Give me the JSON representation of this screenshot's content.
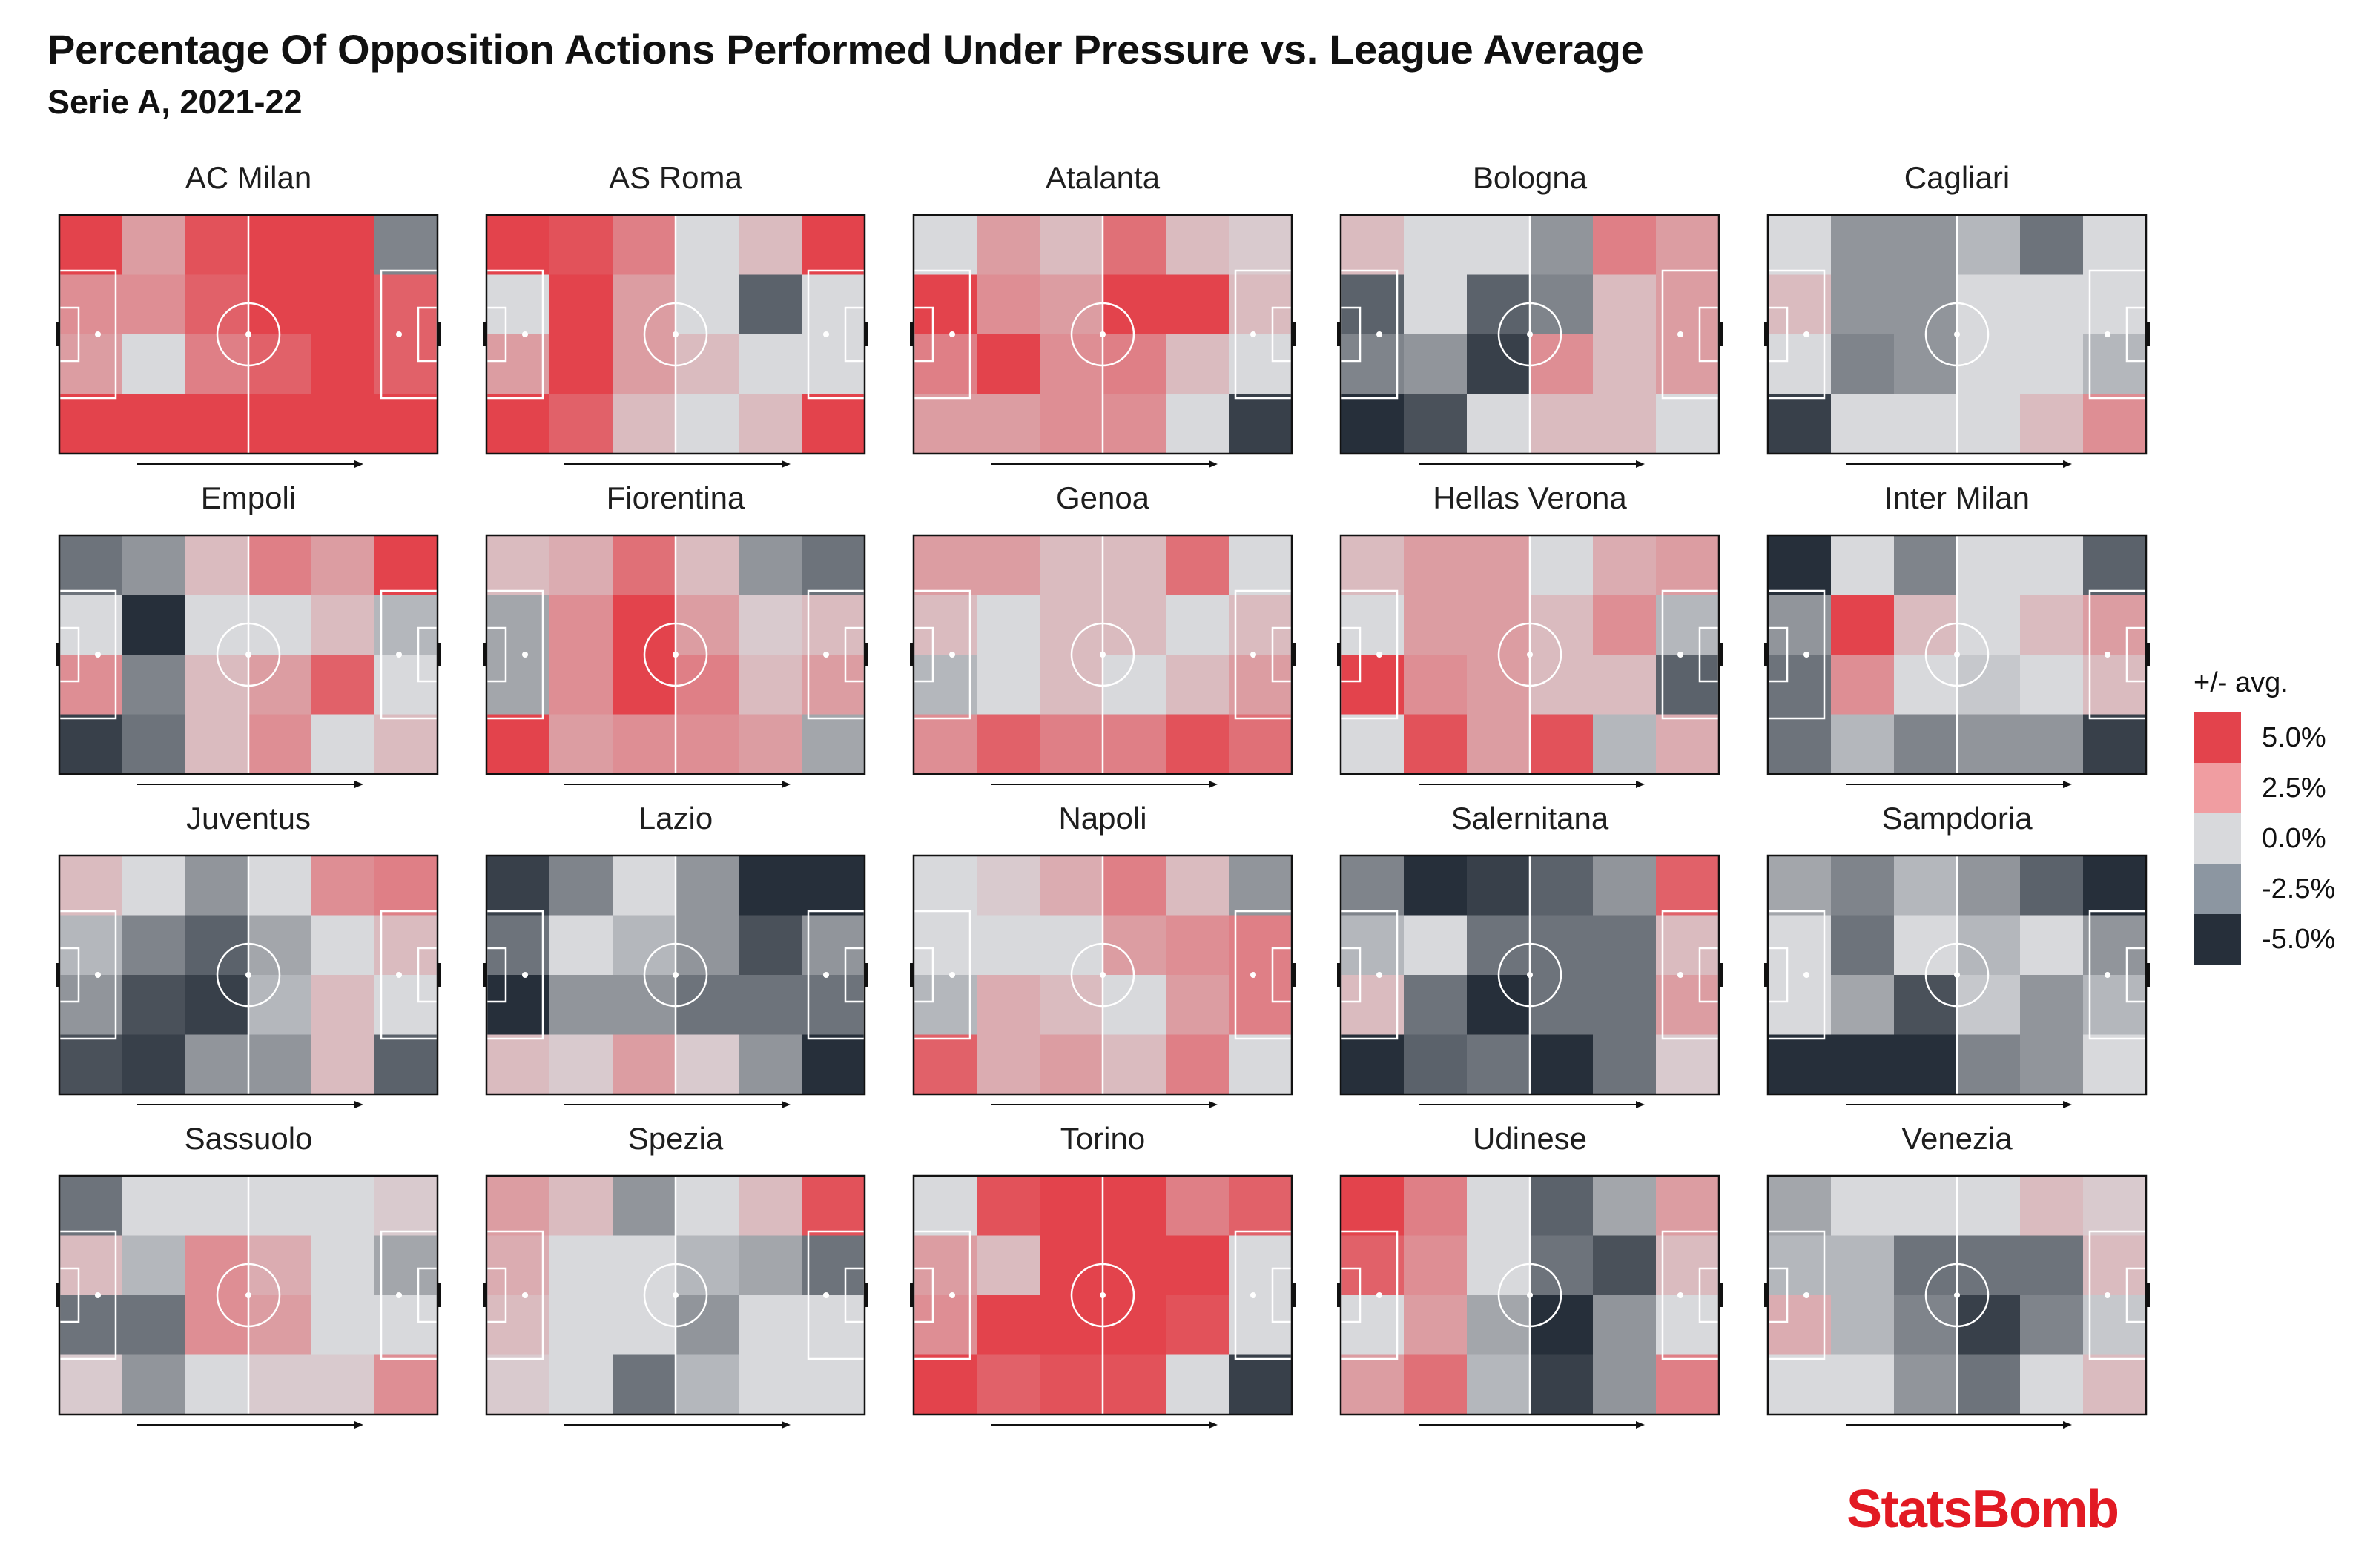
{
  "header": {
    "title": "Percentage Of Opposition Actions Performed Under Pressure vs. League Average",
    "subtitle": "Serie A, 2021-22"
  },
  "legend": {
    "title": "+/- avg.",
    "items": [
      {
        "label": "5.0%",
        "value": 5.0,
        "color": "#e3434c"
      },
      {
        "label": "2.5%",
        "value": 2.5,
        "color": "#f09da1"
      },
      {
        "label": "0.0%",
        "value": 0.0,
        "color": "#d8d9dc"
      },
      {
        "label": "-2.5%",
        "value": -2.5,
        "color": "#8c96a1"
      },
      {
        "label": "-5.0%",
        "value": -5.0,
        "color": "#262f3a"
      }
    ]
  },
  "brand": "StatsBomb",
  "colors": {
    "positive": "#e3434c",
    "neutral": "#d8d9dc",
    "negative": "#262f3a",
    "brand": "#e21a23"
  },
  "chart_data": {
    "type": "heatmap",
    "title": "Percentage Of Opposition Actions Performed Under Pressure vs. League Average",
    "subtitle": "Serie A, 2021-22",
    "value_unit": "percentage points vs league average",
    "scale": [
      -5.0,
      5.0
    ],
    "grid": {
      "rows": 4,
      "cols": 6
    },
    "attack_direction": "left-to-right",
    "teams": [
      {
        "name": "AC Milan",
        "values": [
          [
            5,
            2,
            4.5,
            5,
            5,
            -2.5
          ],
          [
            2.5,
            2.5,
            4,
            5,
            5,
            4
          ],
          [
            2,
            0,
            3,
            4,
            5,
            4
          ],
          [
            5,
            5,
            5,
            5,
            5,
            5
          ]
        ]
      },
      {
        "name": "AS Roma",
        "values": [
          [
            5,
            4.5,
            3,
            0,
            1,
            5
          ],
          [
            0,
            5,
            2,
            0,
            -3.5,
            0
          ],
          [
            2,
            5,
            2,
            1,
            0,
            0
          ],
          [
            5,
            4,
            1,
            0,
            1,
            5
          ]
        ]
      },
      {
        "name": "Atalanta",
        "values": [
          [
            0,
            2,
            1,
            3.5,
            1,
            0.5
          ],
          [
            5,
            2.5,
            2,
            5,
            5,
            1
          ],
          [
            3,
            5,
            2.5,
            3,
            1,
            0
          ],
          [
            2,
            2,
            2.5,
            2.5,
            0,
            -4.5
          ]
        ]
      },
      {
        "name": "Bologna",
        "values": [
          [
            1,
            0,
            0,
            -2,
            3,
            2
          ],
          [
            -3.5,
            0,
            -3.5,
            -2.5,
            1,
            2
          ],
          [
            -2.5,
            -2,
            -4.5,
            2.5,
            1,
            2
          ],
          [
            -5,
            -4,
            0,
            1,
            1,
            0
          ]
        ]
      },
      {
        "name": "Cagliari",
        "values": [
          [
            0,
            -2,
            -2,
            -1,
            -3,
            0
          ],
          [
            1,
            -2,
            -2,
            0,
            0,
            0
          ],
          [
            0,
            -2.5,
            -2,
            0,
            0,
            -1
          ],
          [
            -4.5,
            0,
            0,
            0,
            1,
            2.5
          ]
        ]
      },
      {
        "name": "Empoli",
        "values": [
          [
            -3,
            -2,
            1,
            3,
            2,
            5
          ],
          [
            0,
            -5,
            0,
            0,
            1,
            -1
          ],
          [
            2.5,
            -2.5,
            1,
            2,
            4,
            0
          ],
          [
            -4.5,
            -3,
            1,
            2.5,
            0,
            1
          ]
        ]
      },
      {
        "name": "Fiorentina",
        "values": [
          [
            1,
            1.5,
            3.5,
            1,
            -2,
            -3
          ],
          [
            -1.5,
            2.5,
            5,
            2,
            0.5,
            1
          ],
          [
            -1.5,
            2.5,
            5,
            3,
            1,
            2
          ],
          [
            5,
            2,
            2.5,
            2.5,
            2,
            -1.5
          ]
        ]
      },
      {
        "name": "Genoa",
        "values": [
          [
            2,
            2,
            1,
            1,
            3.5,
            0
          ],
          [
            1,
            0,
            1,
            1,
            0,
            1
          ],
          [
            -1,
            0,
            1,
            0,
            1,
            2
          ],
          [
            2.5,
            4,
            3,
            3,
            4.5,
            3.5
          ]
        ]
      },
      {
        "name": "Hellas Verona",
        "values": [
          [
            1,
            2,
            2,
            0,
            1.5,
            2
          ],
          [
            0,
            2,
            2,
            1,
            2.5,
            -1
          ],
          [
            5,
            2.5,
            2,
            1,
            1,
            -3.5
          ],
          [
            0,
            4.5,
            2,
            4.5,
            -1,
            1.5
          ]
        ]
      },
      {
        "name": "Inter Milan",
        "values": [
          [
            -5,
            0,
            -2.5,
            0,
            0,
            -3.5
          ],
          [
            -2,
            5,
            1,
            0,
            1,
            2
          ],
          [
            -3,
            2.5,
            0,
            -0.5,
            0,
            1
          ],
          [
            -3,
            -1,
            -2.5,
            -2,
            -2,
            -4.5
          ]
        ]
      },
      {
        "name": "Juventus",
        "values": [
          [
            1,
            0,
            -2,
            0,
            2.5,
            3
          ],
          [
            -1,
            -2.5,
            -3.5,
            -1.5,
            0,
            1
          ],
          [
            -2,
            -4,
            -4.5,
            -1,
            1,
            0
          ],
          [
            -4,
            -4.5,
            -2,
            -2,
            1,
            -3.5
          ]
        ]
      },
      {
        "name": "Lazio",
        "values": [
          [
            -4.5,
            -2.5,
            0,
            -2,
            -5,
            -5
          ],
          [
            -3,
            0,
            -1,
            -2,
            -4,
            -2
          ],
          [
            -5,
            -2,
            -2,
            -3,
            -3,
            -3
          ],
          [
            1,
            0.5,
            2,
            0.5,
            -2,
            -5
          ]
        ]
      },
      {
        "name": "Napoli",
        "values": [
          [
            0,
            0.5,
            1.5,
            3,
            1,
            -2
          ],
          [
            0,
            0,
            0,
            2,
            2.5,
            3
          ],
          [
            -1,
            1.5,
            1,
            0,
            2,
            3
          ],
          [
            4,
            1.5,
            2,
            1,
            3,
            0
          ]
        ]
      },
      {
        "name": "Salernitana",
        "values": [
          [
            -2.5,
            -5,
            -4.5,
            -3.5,
            -2,
            4
          ],
          [
            -1,
            0,
            -3,
            -3,
            -3,
            1
          ],
          [
            1,
            -3,
            -5,
            -3,
            -3,
            2
          ],
          [
            -5,
            -3.5,
            -3,
            -5,
            -3,
            0.5
          ]
        ]
      },
      {
        "name": "Sampdoria",
        "values": [
          [
            -1.5,
            -2.5,
            -1,
            -2,
            -3.5,
            -5
          ],
          [
            0,
            -3,
            0,
            -1,
            0,
            -2
          ],
          [
            0,
            -1.5,
            -4,
            -0.5,
            -2,
            -1
          ],
          [
            -5,
            -5,
            -5,
            -2.5,
            -2,
            0
          ]
        ]
      },
      {
        "name": "Sassuolo",
        "values": [
          [
            -3,
            0,
            0,
            0,
            0,
            0.5
          ],
          [
            1,
            -1,
            2.5,
            1.5,
            0,
            -1.5
          ],
          [
            -3,
            -3,
            2.5,
            2,
            0,
            0
          ],
          [
            0.5,
            -2,
            0,
            0.5,
            0.5,
            2.5
          ]
        ]
      },
      {
        "name": "Spezia",
        "values": [
          [
            2,
            1,
            -2,
            0,
            1,
            4.5
          ],
          [
            1.5,
            0,
            0,
            -1,
            -1.5,
            -3
          ],
          [
            1,
            0,
            0,
            -2,
            0,
            0
          ],
          [
            0.5,
            0,
            -3,
            -1,
            0,
            0
          ]
        ]
      },
      {
        "name": "Torino",
        "values": [
          [
            0,
            4.5,
            5,
            5,
            3,
            4
          ],
          [
            2,
            1,
            5,
            5,
            5,
            0
          ],
          [
            2.5,
            5,
            5,
            5,
            4.5,
            0
          ],
          [
            5,
            4,
            4.5,
            4.5,
            0,
            -4.5
          ]
        ]
      },
      {
        "name": "Udinese",
        "values": [
          [
            5,
            3,
            0,
            -3.5,
            -1.5,
            2
          ],
          [
            4,
            2.5,
            0,
            -3,
            -4,
            1
          ],
          [
            0,
            2,
            -1.5,
            -5,
            -2,
            0
          ],
          [
            2,
            3.5,
            -1,
            -4.5,
            -2,
            3
          ]
        ]
      },
      {
        "name": "Venezia",
        "values": [
          [
            -1.5,
            0,
            0,
            0,
            1,
            0.5
          ],
          [
            -1,
            -1,
            -3,
            -3,
            -3,
            1
          ],
          [
            1.5,
            -1,
            -2.5,
            -4.5,
            -2.5,
            -0.5
          ],
          [
            0,
            0,
            -2,
            -3,
            0,
            1
          ]
        ]
      }
    ]
  }
}
